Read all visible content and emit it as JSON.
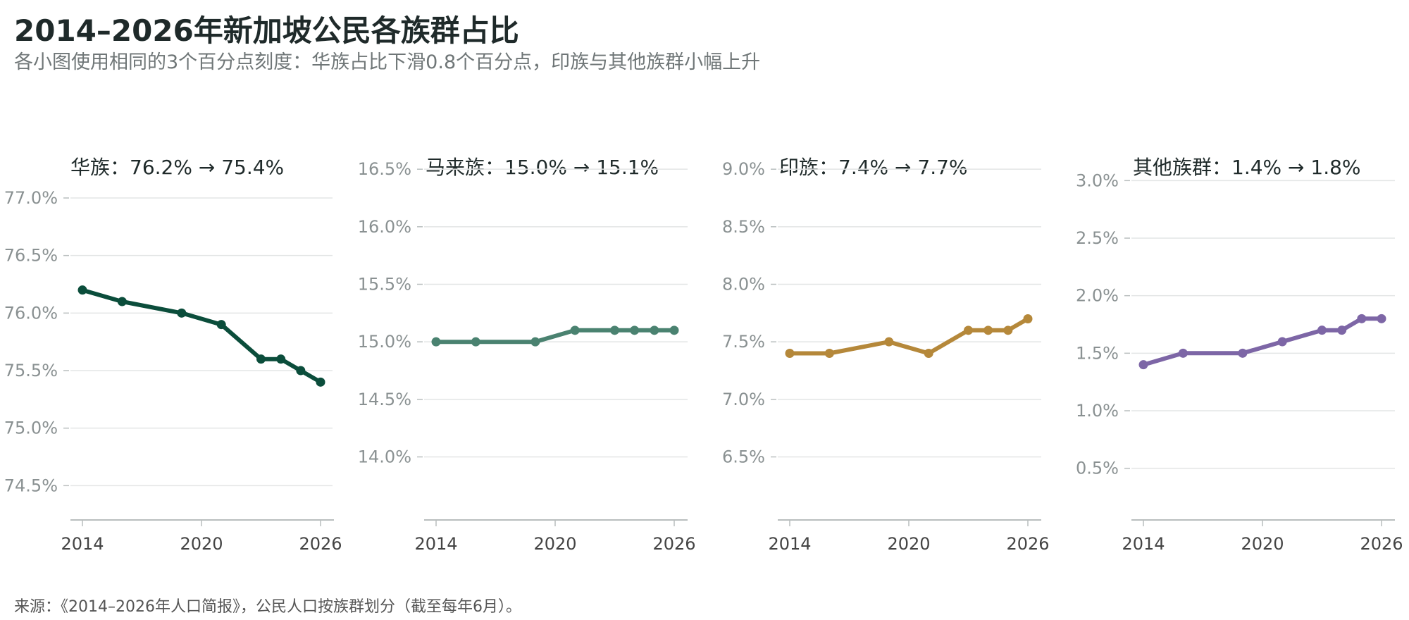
{
  "title": "2014–2026年新加坡公民各族群占比",
  "subtitle": "各小图使用相同的3个百分点刻度：华族占比下滑0.8个百分点，印族与其他族群小幅上升",
  "source": "来源：《2014–2026年人口简报》，公民人口按族群划分（截至每年6月）。",
  "chart_data": [
    {
      "type": "line",
      "title": "华族：76.2% → 75.4%",
      "color": "#0b4d3b",
      "x": [
        2014,
        2016,
        2019,
        2021,
        2023,
        2024,
        2025,
        2026
      ],
      "values": [
        76.2,
        76.1,
        76.0,
        75.9,
        75.6,
        75.6,
        75.5,
        75.4
      ],
      "ylim": [
        74.3,
        77.3
      ],
      "yticks": [
        "74.5%",
        "75.0%",
        "75.5%",
        "76.0%",
        "76.5%",
        "77.0%"
      ],
      "ytick_values": [
        74.5,
        75.0,
        75.5,
        76.0,
        76.5,
        77.0
      ],
      "xticks": [
        "2014",
        "2020",
        "2026"
      ],
      "xtick_values": [
        2014,
        2020,
        2026
      ],
      "grid": true
    },
    {
      "type": "line",
      "title": "马来族：15.0% → 15.1%",
      "color": "#4a8270",
      "x": [
        2014,
        2016,
        2019,
        2021,
        2023,
        2024,
        2025,
        2026
      ],
      "values": [
        15.0,
        15.0,
        15.0,
        15.1,
        15.1,
        15.1,
        15.1,
        15.1
      ],
      "ylim": [
        13.55,
        16.55
      ],
      "yticks": [
        "14.0%",
        "14.5%",
        "15.0%",
        "15.5%",
        "16.0%",
        "16.5%"
      ],
      "ytick_values": [
        14.0,
        14.5,
        15.0,
        15.5,
        16.0,
        16.5
      ],
      "xticks": [
        "2014",
        "2020",
        "2026"
      ],
      "xtick_values": [
        2014,
        2020,
        2026
      ],
      "grid": true
    },
    {
      "type": "line",
      "title": "印族：7.4% → 7.7%",
      "color": "#b5883a",
      "x": [
        2014,
        2016,
        2019,
        2021,
        2023,
        2024,
        2025,
        2026
      ],
      "values": [
        7.4,
        7.4,
        7.5,
        7.4,
        7.6,
        7.6,
        7.6,
        7.7
      ],
      "ylim": [
        6.05,
        9.05
      ],
      "yticks": [
        "6.5%",
        "7.0%",
        "7.5%",
        "8.0%",
        "8.5%",
        "9.0%"
      ],
      "ytick_values": [
        6.5,
        7.0,
        7.5,
        8.0,
        8.5,
        9.0
      ],
      "xticks": [
        "2014",
        "2020",
        "2026"
      ],
      "xtick_values": [
        2014,
        2020,
        2026
      ],
      "grid": true
    },
    {
      "type": "line",
      "title": "其他族群：1.4% → 1.8%",
      "color": "#7d66a6",
      "x": [
        2014,
        2016,
        2019,
        2021,
        2023,
        2024,
        2025,
        2026
      ],
      "values": [
        1.4,
        1.5,
        1.5,
        1.6,
        1.7,
        1.7,
        1.8,
        1.8
      ],
      "ylim": [
        0.1,
        3.1
      ],
      "yticks": [
        "0.5%",
        "1.0%",
        "1.5%",
        "2.0%",
        "2.5%",
        "3.0%"
      ],
      "ytick_values": [
        0.5,
        1.0,
        1.5,
        2.0,
        2.5,
        3.0
      ],
      "xticks": [
        "2014",
        "2020",
        "2026"
      ],
      "xtick_values": [
        2014,
        2020,
        2026
      ],
      "grid": true
    }
  ]
}
